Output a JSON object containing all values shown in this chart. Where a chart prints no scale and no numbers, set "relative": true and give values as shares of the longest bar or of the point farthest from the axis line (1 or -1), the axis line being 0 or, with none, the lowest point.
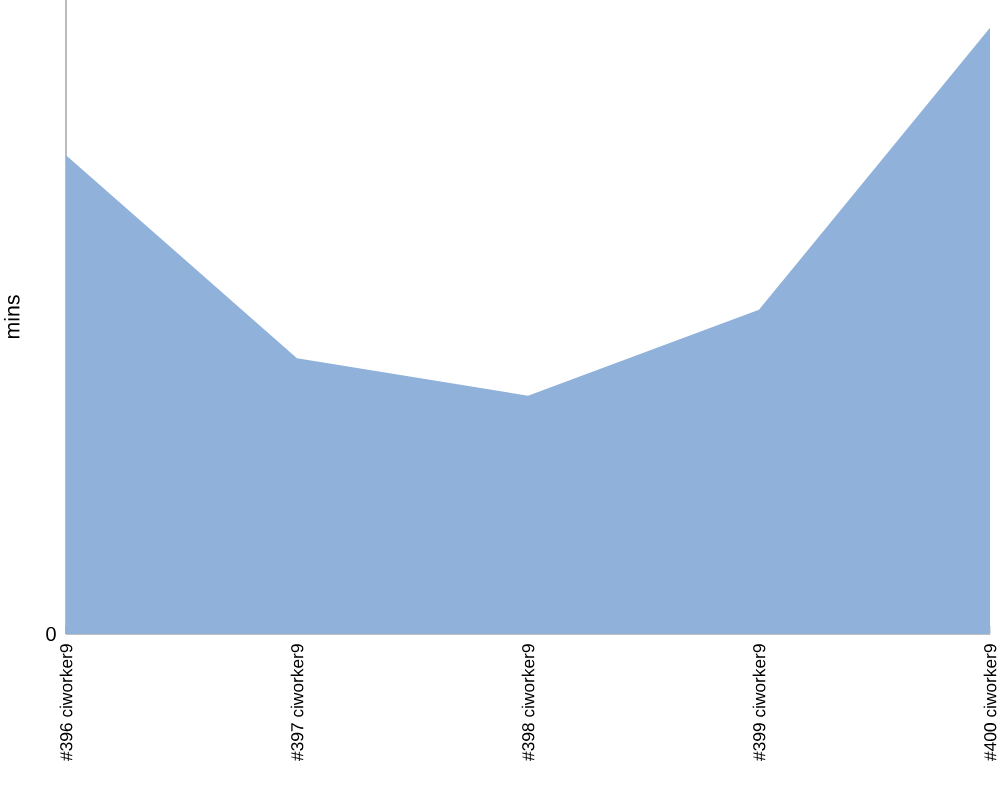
{
  "chart_data": {
    "type": "area",
    "relative": true,
    "ylabel": "mins",
    "categories": [
      "#396 ciworker9",
      "#397 ciworker9",
      "#398 ciworker9",
      "#399 ciworker9",
      "#400 ciworker9"
    ],
    "values": [
      0.79,
      0.455,
      0.393,
      0.535,
      1
    ],
    "color": "#8fb1da",
    "annotations": [
      "0"
    ]
  }
}
